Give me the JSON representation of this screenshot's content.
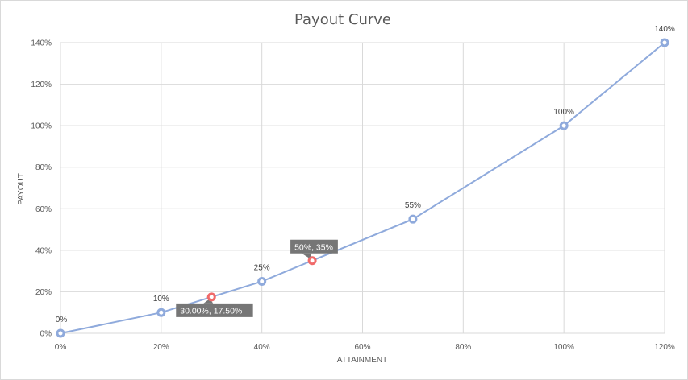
{
  "chart_data": {
    "type": "line",
    "title": "Payout Curve",
    "xlabel": "ATTAINMENT",
    "ylabel": "PAYOUT",
    "xlim": [
      0,
      120
    ],
    "ylim": [
      0,
      140
    ],
    "x_ticks": [
      0,
      20,
      40,
      60,
      80,
      100,
      120
    ],
    "y_ticks": [
      0,
      20,
      40,
      60,
      80,
      100,
      120,
      140
    ],
    "x_tick_labels": [
      "0%",
      "20%",
      "40%",
      "60%",
      "80%",
      "100%",
      "120%"
    ],
    "y_tick_labels": [
      "0%",
      "20%",
      "40%",
      "60%",
      "80%",
      "100%",
      "120%",
      "140%"
    ],
    "grid": true,
    "legend": "none",
    "series": [
      {
        "x": [
          0,
          20,
          40,
          70,
          100,
          120
        ],
        "y": [
          0,
          10,
          25,
          55,
          100,
          140
        ],
        "labels": [
          "0%",
          "10%",
          "25%",
          "55%",
          "100%",
          "140%"
        ],
        "color": "#8faadc"
      }
    ],
    "highlights": [
      {
        "x": 30,
        "y": 17.5,
        "label": "30.00%, 17.50%",
        "color": "#f06a6a"
      },
      {
        "x": 50,
        "y": 35,
        "label": "50%, 35%",
        "color": "#f06a6a"
      }
    ]
  }
}
